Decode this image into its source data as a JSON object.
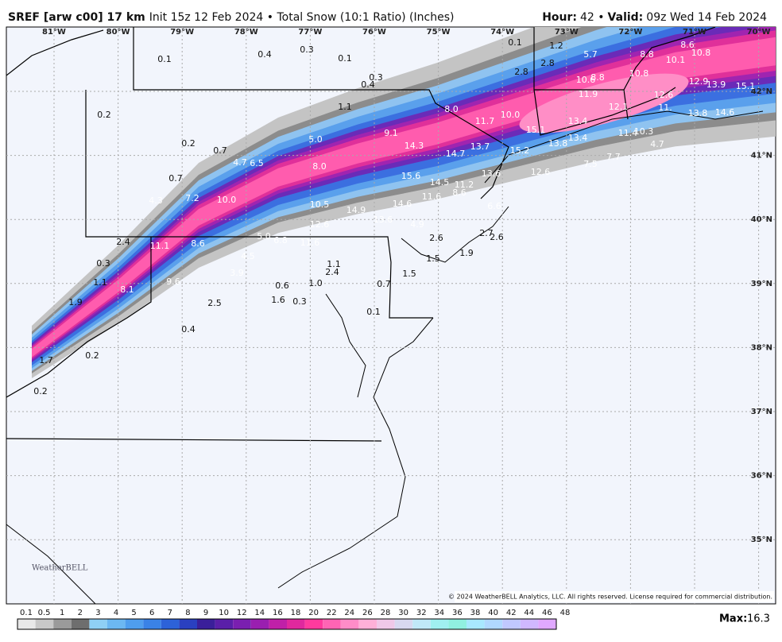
{
  "header": {
    "model": "SREF [arw c00] 17 km",
    "description": "Init 15z 12 Feb 2024 • Total Snow (10:1 Ratio) (Inches)",
    "hour_label": "Hour:",
    "hour": "42 •",
    "valid_label": "Valid:",
    "valid": "09z Wed 14 Feb 2024"
  },
  "map": {
    "longitudes": [
      "81°W",
      "80°W",
      "79°W",
      "78°W",
      "77°W",
      "76°W",
      "75°W",
      "74°W",
      "73°W",
      "72°W",
      "71°W",
      "70°W"
    ],
    "latitudes": [
      "42°N",
      "41°N",
      "40°N",
      "39°N",
      "38°N",
      "37°N",
      "36°N",
      "35°N"
    ],
    "snow_labels": [
      "0.1",
      "0.4",
      "0.3",
      "0.1",
      "0.3",
      "0.4",
      "0.1",
      "1.2",
      "5.7",
      "8.8",
      "8.6",
      "10.8",
      "10.1",
      "2.8",
      "2.8",
      "10.8",
      "10.6",
      "8.8",
      "12.9",
      "13.9",
      "15.1",
      "11.9",
      "12.1",
      "12.6",
      "11.",
      "0.2",
      "1.1",
      "8.0",
      "11.7",
      "10.0",
      "13.4",
      "13.8",
      "14.6",
      "15.1",
      "9.1",
      "5.0",
      "14.3",
      "13.7",
      "13.4",
      "13.8",
      "11.4",
      "10.3",
      "4.7",
      "0.2",
      "0.7",
      "15.2",
      "14.7",
      "4.7",
      "6.5",
      "8.0",
      "7.7",
      "7.5",
      "12.6",
      "0.7",
      "13.6",
      "15.6",
      "14.5",
      "11.2",
      "7.2",
      "10.0",
      "4.3",
      "10.5",
      "14.9",
      "14.6",
      "11.6",
      "8.6",
      "6.6",
      "12.6",
      "13.6",
      "4.9",
      "2.4",
      "2.7",
      "2.6",
      "5.0",
      "6.8",
      "2.6",
      "11.1",
      "8.6",
      "11.6",
      "0.3",
      "4.5",
      "1.9",
      "1.5",
      "1.1",
      "2.4",
      "3.9",
      "1.5",
      "1.1",
      "9.6",
      "0.6",
      "1.0",
      "0.7",
      "8.1",
      "1.9",
      "2.5",
      "1.6",
      "0.3",
      "0.1",
      "0.4",
      "0.2",
      "1.7",
      "0.2"
    ],
    "copyright": "© 2024 WeatherBELL Analytics, LLC. All rights reserved. License required for commercial distribution.",
    "watermark": "WeatherBELL"
  },
  "legend": {
    "labels": [
      0.1,
      0.5,
      1,
      2,
      3,
      4,
      5,
      6,
      7,
      8,
      9,
      10,
      12,
      14,
      16,
      18,
      20,
      22,
      24,
      26,
      28,
      30,
      32,
      34,
      36,
      38,
      40,
      42,
      44,
      46,
      48
    ],
    "max_label": "Max:",
    "max": 16.3
  }
}
